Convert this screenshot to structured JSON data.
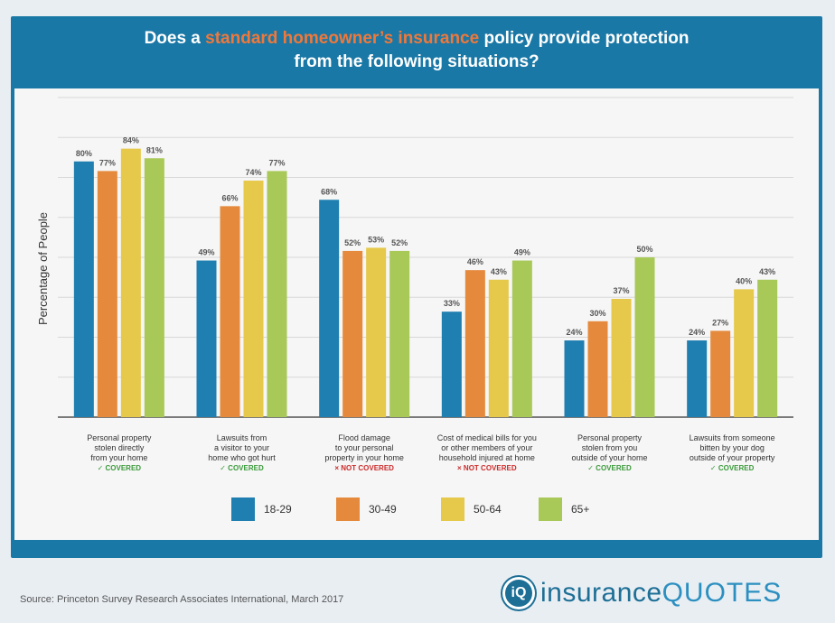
{
  "header": {
    "title_part1": "Does a ",
    "title_highlight": "standard homeowner’s insurance",
    "title_part2": " policy provide protection",
    "title_line2": "from the following situations?"
  },
  "footer": {
    "source": "Source: Princeton Survey Research Associates International, March 2017",
    "logo_part1": "insurance",
    "logo_part2": "QUOTES",
    "logo_mark": "iQ"
  },
  "colors": {
    "frame": "#1a78a6",
    "highlight": "#f0783a",
    "covered": "#3a9a3a",
    "not_covered": "#cc2a2a",
    "series": [
      "#1f7fb0",
      "#e58a3c",
      "#e6c84a",
      "#a8c858"
    ]
  },
  "chart_data": {
    "type": "bar",
    "title": "Does a standard homeowner’s insurance policy provide protection from the following situations?",
    "ylabel": "Percentage of People",
    "xlabel": "",
    "ylim": [
      0,
      100
    ],
    "grid": true,
    "legend_position": "bottom",
    "categories": [
      {
        "lines": [
          "Personal property",
          "stolen directly",
          "from your home"
        ],
        "status": "✓ COVERED",
        "covered": true
      },
      {
        "lines": [
          "Lawsuits from",
          "a visitor to your",
          "home who got hurt"
        ],
        "status": "✓ COVERED",
        "covered": true
      },
      {
        "lines": [
          "Flood damage",
          "to your personal",
          "property in your home"
        ],
        "status": "× NOT COVERED",
        "covered": false
      },
      {
        "lines": [
          "Cost of medical bills for you",
          "or other members of your",
          "household injured at home"
        ],
        "status": "× NOT COVERED",
        "covered": false
      },
      {
        "lines": [
          "Personal property",
          "stolen from you",
          "outside of your home"
        ],
        "status": "✓ COVERED",
        "covered": true
      },
      {
        "lines": [
          "Lawsuits from someone",
          "bitten by your dog",
          "outside of your property"
        ],
        "status": "✓ COVERED",
        "covered": true
      }
    ],
    "series": [
      {
        "name": "18-29",
        "values": [
          80,
          49,
          68,
          33,
          24,
          24
        ]
      },
      {
        "name": "30-49",
        "values": [
          77,
          66,
          52,
          46,
          30,
          27
        ]
      },
      {
        "name": "50-64",
        "values": [
          84,
          74,
          53,
          43,
          37,
          40
        ]
      },
      {
        "name": "65+",
        "values": [
          81,
          77,
          52,
          49,
          50,
          43
        ]
      }
    ]
  }
}
